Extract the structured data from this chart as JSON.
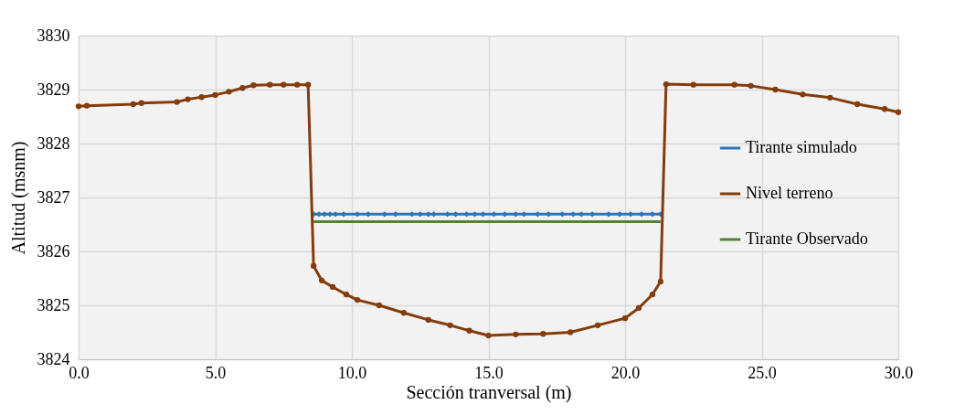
{
  "chart_data": {
    "type": "line",
    "xlabel": "Sección tranversal (m)",
    "ylabel": "Altitud (msnm)",
    "xlim": [
      0,
      30
    ],
    "xticks": [
      {
        "value": 0,
        "label": "0.0"
      },
      {
        "value": 5,
        "label": "5.0"
      },
      {
        "value": 10,
        "label": "10.0"
      },
      {
        "value": 15,
        "label": "15.0"
      },
      {
        "value": 20,
        "label": "20.0"
      },
      {
        "value": 25,
        "label": "25.0"
      },
      {
        "value": 30,
        "label": "30.0"
      }
    ],
    "ylim": [
      3824,
      3830
    ],
    "yticks": [
      3824,
      3825,
      3826,
      3827,
      3828,
      3829,
      3830
    ],
    "grid": true,
    "legend": "right",
    "series": [
      {
        "name": "Tirante simulado",
        "color": "#2e75b6",
        "marker": "diamond",
        "x": [
          8.6,
          8.8,
          9.0,
          9.2,
          9.4,
          9.7,
          10.2,
          10.6,
          11.2,
          11.6,
          12.2,
          12.5,
          12.8,
          13.0,
          13.5,
          13.8,
          14.2,
          14.5,
          14.8,
          15.2,
          15.6,
          16.0,
          16.3,
          16.8,
          17.2,
          17.7,
          18.1,
          18.4,
          18.8,
          19.4,
          19.8,
          20.2,
          20.6,
          21.0,
          21.3
        ],
        "values": [
          3826.69,
          3826.69,
          3826.69,
          3826.69,
          3826.69,
          3826.69,
          3826.69,
          3826.69,
          3826.69,
          3826.69,
          3826.69,
          3826.69,
          3826.69,
          3826.69,
          3826.69,
          3826.69,
          3826.69,
          3826.69,
          3826.69,
          3826.69,
          3826.69,
          3826.69,
          3826.69,
          3826.69,
          3826.69,
          3826.69,
          3826.69,
          3826.69,
          3826.69,
          3826.69,
          3826.69,
          3826.69,
          3826.69,
          3826.69,
          3826.69
        ]
      },
      {
        "name": "Nivel terreno",
        "color": "#843c0c",
        "marker": "circle",
        "x": [
          0,
          0.3,
          2.0,
          2.3,
          3.6,
          4.0,
          4.5,
          5.0,
          5.5,
          6.0,
          6.4,
          7.0,
          7.5,
          8.0,
          8.4,
          8.6,
          8.9,
          9.3,
          9.8,
          10.2,
          11.0,
          11.9,
          12.8,
          13.6,
          14.3,
          15.0,
          16.0,
          17.0,
          18.0,
          19.0,
          20.0,
          20.5,
          21.0,
          21.3,
          21.5,
          22.5,
          24.0,
          24.6,
          25.5,
          26.5,
          27.5,
          28.5,
          29.5,
          30.0
        ],
        "values": [
          3828.69,
          3828.7,
          3828.73,
          3828.75,
          3828.77,
          3828.82,
          3828.86,
          3828.9,
          3828.96,
          3829.03,
          3829.08,
          3829.09,
          3829.09,
          3829.09,
          3829.09,
          3825.73,
          3825.46,
          3825.34,
          3825.2,
          3825.1,
          3825.0,
          3824.86,
          3824.73,
          3824.63,
          3824.53,
          3824.44,
          3824.46,
          3824.47,
          3824.5,
          3824.63,
          3824.76,
          3824.95,
          3825.2,
          3825.44,
          3829.1,
          3829.09,
          3829.09,
          3829.07,
          3829.0,
          3828.91,
          3828.85,
          3828.73,
          3828.64,
          3828.58
        ]
      },
      {
        "name": "Tirante Observado",
        "color": "#548235",
        "marker": "none",
        "x": [
          8.6,
          21.3
        ],
        "values": [
          3826.55,
          3826.55
        ]
      }
    ]
  }
}
